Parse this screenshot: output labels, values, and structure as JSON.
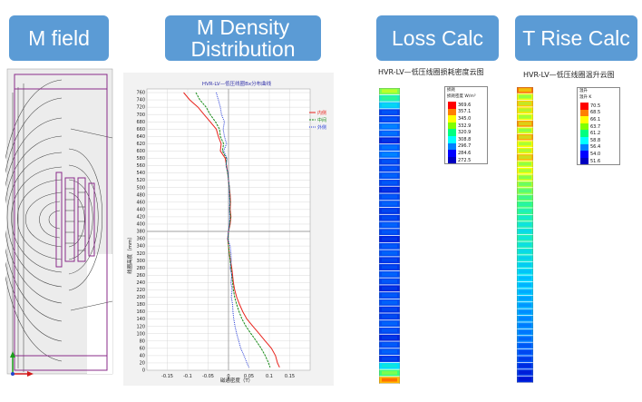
{
  "headers": {
    "m_field": "M field",
    "m_density_line1": "M Density",
    "m_density_line2": "Distribution",
    "loss_calc": "Loss Calc",
    "t_rise_calc": "T Rise Calc"
  },
  "density_chart": {
    "title": "HVR-LV—低压线圈Bx分布曲线",
    "ylabel": "线圈高度（mm）",
    "xlabel": "磁通密度（T）",
    "legend": [
      "内侧",
      "中间",
      "外侧"
    ]
  },
  "loss_panel": {
    "title": "HVR-LV—低压线圈损耗密度云图",
    "legend_title": "损耗",
    "legend_unit": "损耗密度 W/m³",
    "legend_values": [
      "369.6",
      "357.1",
      "345.0",
      "332.9",
      "320.9",
      "308.8",
      "296.7",
      "284.6",
      "272.5"
    ]
  },
  "temp_panel": {
    "title": "HVR-LV—低压线圈温升云图",
    "legend_title": "温升",
    "legend_unit": "温升 K",
    "legend_values": [
      "70.5",
      "68.5",
      "66.1",
      "63.7",
      "61.2",
      "58.8",
      "56.4",
      "54.0",
      "51.6"
    ]
  },
  "chart_data": {
    "type": "line",
    "title": "HVR-LV—低压线圈Bx分布曲线",
    "xlabel": "磁通密度（T）",
    "ylabel": "线圈高度（mm）",
    "xlim": [
      -0.2,
      0.2
    ],
    "ylim": [
      0,
      770
    ],
    "xticks": [
      -0.15,
      -0.1,
      -0.05,
      0,
      0.05,
      0.1,
      0.15
    ],
    "yticks": [
      0,
      20,
      40,
      60,
      80,
      100,
      120,
      140,
      160,
      180,
      200,
      220,
      240,
      260,
      280,
      300,
      320,
      340,
      360,
      380,
      400,
      420,
      440,
      460,
      480,
      500,
      520,
      540,
      560,
      580,
      600,
      620,
      640,
      660,
      680,
      700,
      720,
      740,
      760
    ],
    "grid": true,
    "legend_position": "top-right",
    "series": [
      {
        "name": "内侧",
        "color": "#e8231c",
        "points": [
          [
            -0.11,
            760
          ],
          [
            -0.095,
            740
          ],
          [
            -0.075,
            720
          ],
          [
            -0.06,
            700
          ],
          [
            -0.045,
            680
          ],
          [
            -0.03,
            660
          ],
          [
            -0.025,
            640
          ],
          [
            -0.018,
            620
          ],
          [
            -0.02,
            600
          ],
          [
            -0.008,
            580
          ],
          [
            -0.005,
            560
          ],
          [
            -0.002,
            540
          ],
          [
            0.0,
            520
          ],
          [
            0.002,
            500
          ],
          [
            0.004,
            480
          ],
          [
            0.005,
            460
          ],
          [
            0.004,
            440
          ],
          [
            0.006,
            420
          ],
          [
            0.004,
            400
          ],
          [
            0.0,
            380
          ],
          [
            -0.002,
            360
          ],
          [
            0.0,
            340
          ],
          [
            0.002,
            320
          ],
          [
            0.005,
            300
          ],
          [
            0.008,
            280
          ],
          [
            0.01,
            260
          ],
          [
            0.012,
            240
          ],
          [
            0.015,
            220
          ],
          [
            0.02,
            200
          ],
          [
            0.027,
            180
          ],
          [
            0.035,
            160
          ],
          [
            0.045,
            140
          ],
          [
            0.06,
            120
          ],
          [
            0.075,
            100
          ],
          [
            0.09,
            80
          ],
          [
            0.105,
            60
          ],
          [
            0.115,
            40
          ],
          [
            0.12,
            20
          ],
          [
            0.125,
            8
          ]
        ]
      },
      {
        "name": "中间",
        "color": "#1a8c1a",
        "points": [
          [
            -0.08,
            760
          ],
          [
            -0.07,
            740
          ],
          [
            -0.055,
            720
          ],
          [
            -0.045,
            700
          ],
          [
            -0.032,
            680
          ],
          [
            -0.022,
            660
          ],
          [
            -0.02,
            640
          ],
          [
            -0.012,
            620
          ],
          [
            -0.015,
            600
          ],
          [
            -0.005,
            580
          ],
          [
            -0.006,
            560
          ],
          [
            -0.002,
            540
          ],
          [
            0.0,
            520
          ],
          [
            0.002,
            500
          ],
          [
            0.003,
            480
          ],
          [
            0.004,
            460
          ],
          [
            0.003,
            440
          ],
          [
            0.005,
            420
          ],
          [
            0.003,
            400
          ],
          [
            0.0,
            380
          ],
          [
            -0.001,
            360
          ],
          [
            0.0,
            340
          ],
          [
            0.002,
            320
          ],
          [
            0.004,
            300
          ],
          [
            0.006,
            280
          ],
          [
            0.008,
            260
          ],
          [
            0.01,
            240
          ],
          [
            0.012,
            220
          ],
          [
            0.015,
            200
          ],
          [
            0.02,
            180
          ],
          [
            0.026,
            160
          ],
          [
            0.033,
            140
          ],
          [
            0.043,
            120
          ],
          [
            0.055,
            100
          ],
          [
            0.068,
            80
          ],
          [
            0.08,
            60
          ],
          [
            0.09,
            40
          ],
          [
            0.098,
            20
          ],
          [
            0.102,
            8
          ]
        ]
      },
      {
        "name": "外侧",
        "color": "#2a3fd8",
        "points": [
          [
            -0.03,
            760
          ],
          [
            -0.025,
            740
          ],
          [
            -0.02,
            720
          ],
          [
            -0.017,
            700
          ],
          [
            -0.01,
            680
          ],
          [
            -0.013,
            660
          ],
          [
            -0.01,
            640
          ],
          [
            -0.005,
            620
          ],
          [
            -0.012,
            600
          ],
          [
            -0.004,
            580
          ],
          [
            -0.006,
            560
          ],
          [
            -0.001,
            540
          ],
          [
            0.0,
            520
          ],
          [
            0.002,
            500
          ],
          [
            0.002,
            480
          ],
          [
            0.003,
            460
          ],
          [
            0.002,
            440
          ],
          [
            0.003,
            420
          ],
          [
            0.002,
            400
          ],
          [
            0.0,
            380
          ],
          [
            -0.002,
            360
          ],
          [
            0.004,
            340
          ],
          [
            0.006,
            320
          ],
          [
            0.007,
            300
          ],
          [
            0.004,
            280
          ],
          [
            0.008,
            260
          ],
          [
            0.006,
            240
          ],
          [
            0.009,
            220
          ],
          [
            0.007,
            200
          ],
          [
            0.01,
            180
          ],
          [
            0.011,
            160
          ],
          [
            0.013,
            140
          ],
          [
            0.016,
            120
          ],
          [
            0.02,
            100
          ],
          [
            0.025,
            80
          ],
          [
            0.03,
            60
          ],
          [
            0.038,
            40
          ],
          [
            0.045,
            20
          ],
          [
            0.05,
            8
          ]
        ]
      }
    ]
  }
}
